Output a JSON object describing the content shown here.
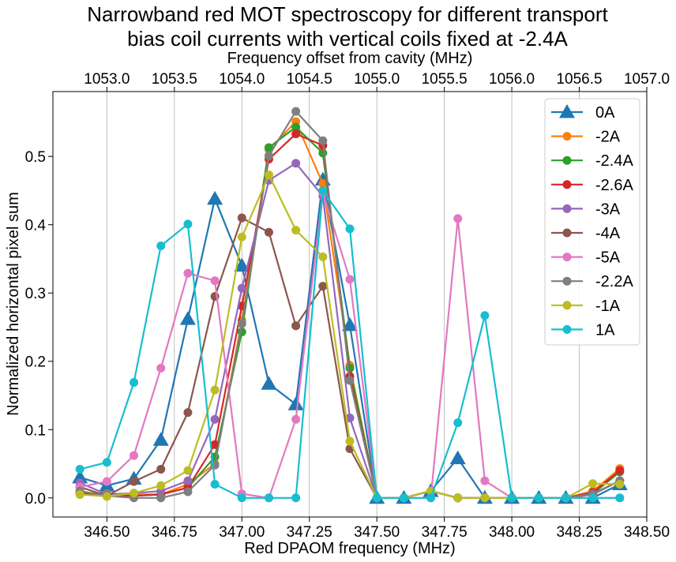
{
  "chart_data": {
    "type": "line",
    "title_line1": "Narrowband red MOT spectroscopy for different transport",
    "title_line2": "bias coil currents with vertical coils fixed at -2.4A",
    "xlabel": "Red DPAOM frequency (MHz)",
    "ylabel": "Normalized horizontal pixel sum",
    "top_xlabel": "Frequency offset from cavity (MHz)",
    "xlim": [
      346.3,
      348.5
    ],
    "ylim": [
      -0.028,
      0.595
    ],
    "x_ticks": [
      "346.50",
      "346.75",
      "347.00",
      "347.25",
      "347.50",
      "347.75",
      "348.00",
      "348.25",
      "348.50"
    ],
    "x_tick_values": [
      346.5,
      346.75,
      347.0,
      347.25,
      347.5,
      347.75,
      348.0,
      348.25,
      348.5
    ],
    "y_ticks": [
      "0.0",
      "0.1",
      "0.2",
      "0.3",
      "0.4",
      "0.5"
    ],
    "y_tick_values": [
      0.0,
      0.1,
      0.2,
      0.3,
      0.4,
      0.5
    ],
    "top_ticks": [
      "1053.0",
      "1053.5",
      "1054.0",
      "1054.5",
      "1055.0",
      "1055.5",
      "1056.0",
      "1056.5",
      "1057.0"
    ],
    "top_tick_values": [
      346.5,
      346.75,
      347.0,
      347.25,
      347.5,
      347.75,
      348.0,
      348.25,
      348.5
    ],
    "grid": "vertical",
    "legend_position": "top-right",
    "x": [
      346.4,
      346.5,
      346.6,
      346.7,
      346.8,
      346.9,
      347.0,
      347.1,
      347.2,
      347.3,
      347.4,
      347.5,
      347.6,
      347.7,
      347.8,
      347.9,
      348.0,
      348.1,
      348.2,
      348.3,
      348.4
    ],
    "series": [
      {
        "name": "0A",
        "color": "#1f77b4",
        "marker": "triangle",
        "values": [
          0.03,
          0.018,
          0.028,
          0.085,
          0.262,
          0.438,
          0.34,
          0.167,
          0.137,
          0.466,
          0.253,
          0.0,
          0.0,
          0.01,
          0.058,
          0.0,
          0.0,
          0.0,
          0.0,
          0.0,
          0.02
        ]
      },
      {
        "name": "-2A",
        "color": "#ff7f0e",
        "marker": "circle",
        "values": [
          0.008,
          0.006,
          0.005,
          0.005,
          0.02,
          0.05,
          0.26,
          0.51,
          0.551,
          0.46,
          0.194,
          0.0,
          0.0,
          0.01,
          0.0,
          0.0,
          0.0,
          0.0,
          0.0,
          0.01,
          0.043
        ]
      },
      {
        "name": "-2.4A",
        "color": "#2ca02c",
        "marker": "circle",
        "values": [
          0.007,
          0.003,
          0.003,
          0.005,
          0.015,
          0.06,
          0.243,
          0.513,
          0.543,
          0.505,
          0.19,
          0.0,
          0.0,
          0.01,
          0.0,
          0.0,
          0.0,
          0.0,
          0.0,
          0.006,
          0.038
        ]
      },
      {
        "name": "-2.6A",
        "color": "#d62728",
        "marker": "circle",
        "values": [
          0.008,
          0.004,
          0.003,
          0.005,
          0.015,
          0.078,
          0.281,
          0.496,
          0.533,
          0.516,
          0.178,
          0.0,
          0.0,
          0.01,
          0.0,
          0.0,
          0.0,
          0.0,
          0.0,
          0.008,
          0.04
        ]
      },
      {
        "name": "-3A",
        "color": "#9467bd",
        "marker": "circle",
        "values": [
          0.022,
          0.005,
          0.007,
          0.01,
          0.025,
          0.115,
          0.307,
          0.465,
          0.49,
          0.442,
          0.117,
          0.0,
          0.0,
          0.01,
          0.0,
          0.0,
          0.0,
          0.0,
          0.0,
          0.006,
          0.025
        ]
      },
      {
        "name": "-4A",
        "color": "#8c564b",
        "marker": "circle",
        "values": [
          0.016,
          0.003,
          0.024,
          0.042,
          0.125,
          0.295,
          0.41,
          0.389,
          0.252,
          0.31,
          0.072,
          0.0,
          0.0,
          0.01,
          0.0,
          0.0,
          0.0,
          0.0,
          0.0,
          0.005,
          0.025
        ]
      },
      {
        "name": "-5A",
        "color": "#e377c2",
        "marker": "circle",
        "values": [
          0.016,
          0.024,
          0.062,
          0.19,
          0.329,
          0.318,
          0.006,
          0.0,
          0.115,
          0.447,
          0.32,
          0.0,
          0.0,
          0.0,
          0.409,
          0.025,
          0.0,
          0.0,
          0.0,
          0.0,
          0.0
        ]
      },
      {
        "name": "-2.2A",
        "color": "#7f7f7f",
        "marker": "circle",
        "values": [
          0.01,
          0.003,
          0.0,
          0.0,
          0.009,
          0.048,
          0.255,
          0.501,
          0.566,
          0.523,
          0.172,
          0.0,
          0.0,
          0.01,
          0.0,
          0.0,
          0.0,
          0.0,
          0.0,
          0.005,
          0.025
        ]
      },
      {
        "name": "-1A",
        "color": "#bcbd22",
        "marker": "circle",
        "values": [
          0.005,
          0.002,
          0.007,
          0.018,
          0.04,
          0.158,
          0.382,
          0.473,
          0.392,
          0.353,
          0.083,
          0.0,
          0.0,
          0.01,
          0.0,
          0.0,
          0.0,
          0.0,
          0.0,
          0.021,
          0.02
        ]
      },
      {
        "name": "1A",
        "color": "#17becf",
        "marker": "circle",
        "values": [
          0.042,
          0.052,
          0.169,
          0.369,
          0.401,
          0.02,
          0.0,
          0.0,
          0.0,
          0.45,
          0.394,
          0.0,
          0.0,
          0.0,
          0.11,
          0.267,
          0.0,
          0.0,
          0.0,
          0.0,
          0.0
        ]
      }
    ]
  }
}
